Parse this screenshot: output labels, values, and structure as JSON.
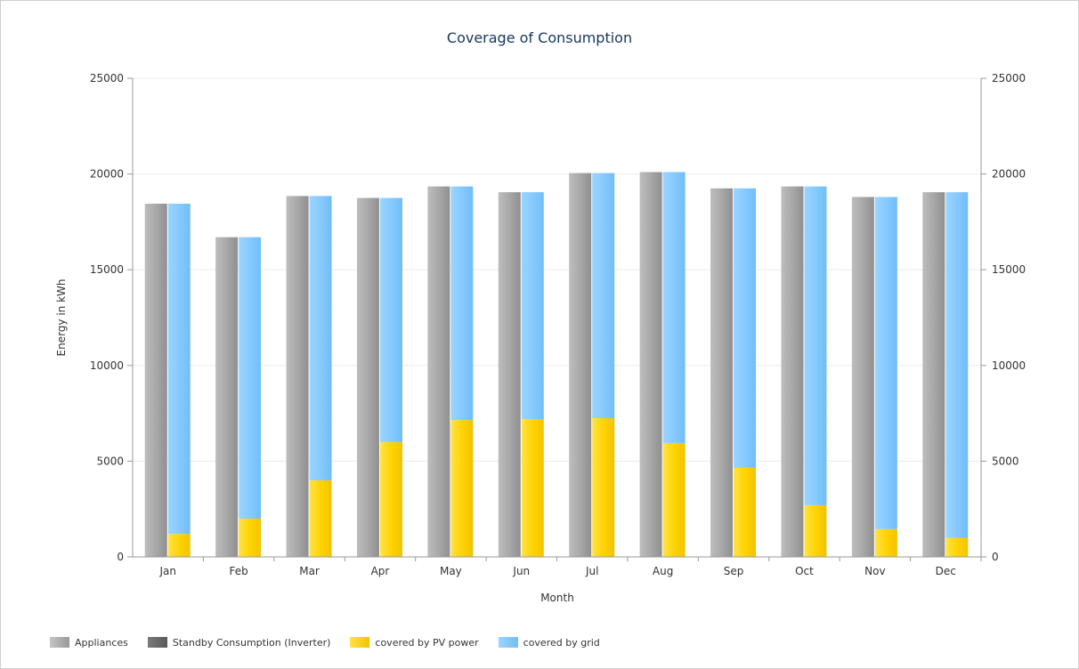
{
  "chart_data": {
    "type": "bar",
    "title": "Coverage of Consumption",
    "xlabel": "Month",
    "ylabel": "Energy in kWh",
    "categories": [
      "Jan",
      "Feb",
      "Mar",
      "Apr",
      "May",
      "Jun",
      "Jul",
      "Aug",
      "Sep",
      "Oct",
      "Nov",
      "Dec"
    ],
    "ylim": [
      0,
      25000
    ],
    "yticks": [
      0,
      5000,
      10000,
      15000,
      20000,
      25000
    ],
    "right_axis": {
      "ylim": [
        0,
        25000
      ],
      "yticks": [
        0,
        5000,
        10000,
        15000,
        20000,
        25000
      ]
    },
    "grid": true,
    "legend_position": "bottom-left",
    "stacks": [
      {
        "name": "consumption",
        "series": [
          "Appliances",
          "Standby Consumption (Inverter)"
        ]
      },
      {
        "name": "coverage",
        "series": [
          "covered by PV power",
          "covered by grid"
        ]
      }
    ],
    "series": [
      {
        "name": "Appliances",
        "stack": "consumption",
        "color": "#a9a9a9",
        "values": [
          18450,
          16700,
          18850,
          18750,
          19350,
          19050,
          20050,
          20100,
          19250,
          19350,
          18800,
          19050
        ]
      },
      {
        "name": "Standby Consumption (Inverter)",
        "stack": "consumption",
        "color": "#6e6e6e",
        "values": [
          0,
          0,
          0,
          0,
          0,
          0,
          0,
          0,
          0,
          0,
          0,
          0
        ]
      },
      {
        "name": "covered by PV power",
        "stack": "coverage",
        "color": "#ffd400",
        "values": [
          1200,
          2000,
          4000,
          6000,
          7150,
          7200,
          7250,
          5950,
          4650,
          2700,
          1450,
          1000
        ]
      },
      {
        "name": "covered by grid",
        "stack": "coverage",
        "color": "#87ccff",
        "values": [
          17250,
          14700,
          14850,
          12750,
          12200,
          11850,
          12800,
          14150,
          14600,
          16650,
          17350,
          18050
        ]
      }
    ]
  },
  "legend": {
    "items": [
      {
        "label": "Appliances",
        "color": "#a9a9a9"
      },
      {
        "label": "Standby Consumption (Inverter)",
        "color": "#6e6e6e"
      },
      {
        "label": "covered by PV power",
        "color": "#ffd400"
      },
      {
        "label": "covered by grid",
        "color": "#87ccff"
      }
    ]
  }
}
